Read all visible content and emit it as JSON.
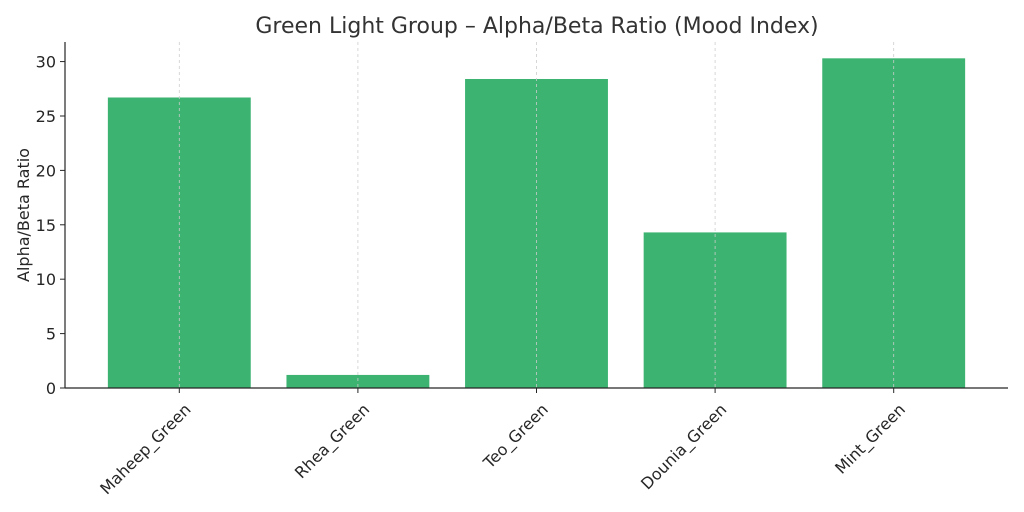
{
  "chart_data": {
    "type": "bar",
    "title": "Green Light Group – Alpha/Beta Ratio (Mood Index)",
    "xlabel": "",
    "ylabel": "Alpha/Beta Ratio",
    "categories": [
      "Maheep_Green",
      "Rhea_Green",
      "Teo_Green",
      "Dounia_Green",
      "Mint_Green"
    ],
    "values": [
      26.7,
      1.2,
      28.4,
      14.3,
      30.3
    ],
    "ylim": [
      0,
      31.8
    ],
    "yticks": [
      0,
      5,
      10,
      15,
      20,
      25,
      30
    ],
    "grid": "x-dashed",
    "bar_color": "#3cb371",
    "axis_color": "#262626",
    "grid_color": "#cccccc"
  }
}
